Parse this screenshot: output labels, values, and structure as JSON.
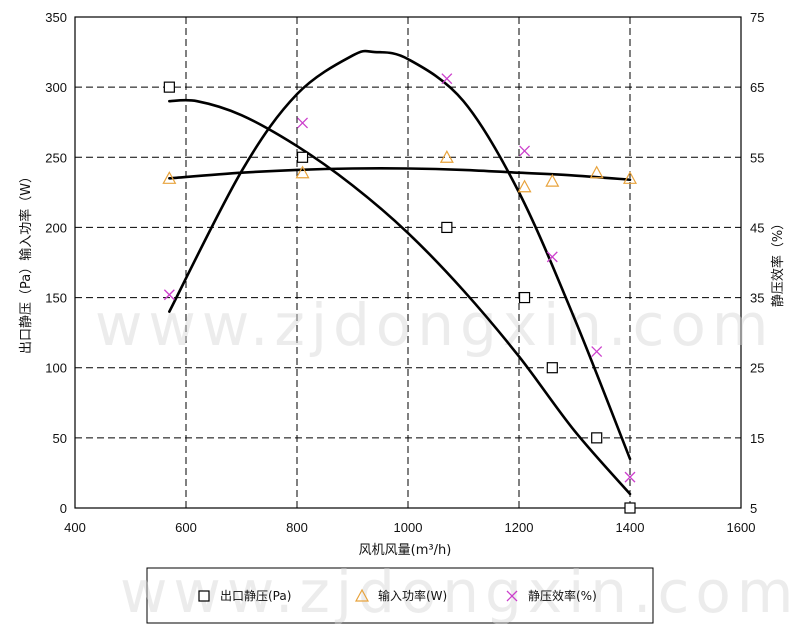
{
  "watermark": "www.zjdongxin.com",
  "chart_data": {
    "type": "scatter",
    "xlabel": "风机风量(m³/h)",
    "ylabel": "出口静压（Pa）输入功率（W）",
    "y2label": "静压效率（%）",
    "xlim": [
      400,
      1600
    ],
    "ylim": [
      0,
      350
    ],
    "y2lim": [
      5,
      75
    ],
    "xticks": [
      400,
      600,
      800,
      1000,
      1200,
      1400,
      1600
    ],
    "yticks": [
      0,
      50,
      100,
      150,
      200,
      250,
      300,
      350
    ],
    "y2ticks": [
      5,
      15,
      25,
      35,
      45,
      55,
      65,
      75
    ],
    "grid": true,
    "legend": "bottom",
    "series": [
      {
        "name": "出口静压(Pa)",
        "axis": "left",
        "marker": "square",
        "color": "#000000",
        "x": [
          570,
          810,
          1070,
          1210,
          1260,
          1340,
          1400
        ],
        "y": [
          300,
          250,
          200,
          150,
          100,
          50,
          0
        ],
        "fit": {
          "x": [
            570,
            620,
            700,
            800,
            900,
            1000,
            1100,
            1200,
            1300,
            1400
          ],
          "y": [
            290,
            290,
            280,
            258,
            230,
            196,
            155,
            108,
            55,
            10
          ]
        }
      },
      {
        "name": "输入功率(W)",
        "axis": "left",
        "marker": "triangle",
        "color": "#e8a33c",
        "x": [
          570,
          810,
          1070,
          1210,
          1260,
          1340,
          1400
        ],
        "y": [
          235,
          239,
          250,
          229,
          233,
          239,
          235
        ],
        "fit": {
          "x": [
            570,
            700,
            800,
            900,
            1000,
            1100,
            1200,
            1300,
            1400
          ],
          "y": [
            235,
            239,
            241,
            242,
            242,
            241,
            239,
            237,
            234
          ]
        }
      },
      {
        "name": "静压效率(%)",
        "axis": "right",
        "marker": "x",
        "color": "#cc3fcc",
        "x": [
          570,
          810,
          1070,
          1210,
          1260,
          1340,
          1400
        ],
        "y": [
          35.4,
          59.9,
          66.2,
          55.9,
          40.8,
          27.3,
          9.4
        ],
        "fit": {
          "x": [
            570,
            700,
            800,
            900,
            940,
            1000,
            1100,
            1200,
            1300,
            1400
          ],
          "y": [
            33,
            53,
            64,
            69.5,
            70,
            69,
            63,
            50,
            32,
            12
          ]
        }
      }
    ]
  }
}
